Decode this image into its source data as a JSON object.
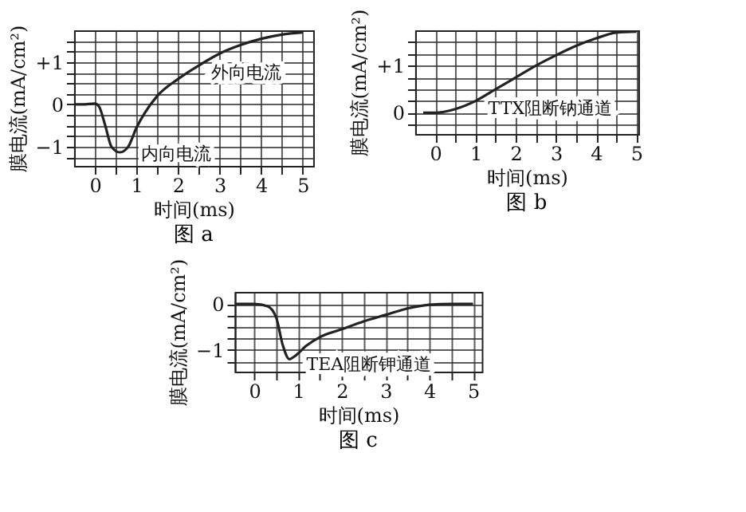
{
  "chart_data": [
    {
      "type": "line",
      "title": "图 a",
      "xlabel": "时间(ms)",
      "ylabel": "膜电流(mA/cm²)",
      "grid": true,
      "marker": "none",
      "line_style": "solid",
      "xlim": [
        -0.5,
        5.25
      ],
      "ylim": [
        -1.45,
        1.75
      ],
      "xticks": [
        0,
        {
          "value": 0.5,
          "label": null
        },
        1,
        {
          "value": 1.5,
          "label": null
        },
        2,
        {
          "value": 2.5,
          "label": null
        },
        3,
        {
          "value": 3.5,
          "label": null
        },
        4,
        {
          "value": 4.5,
          "label": null
        },
        5
      ],
      "yticks": [
        {
          "value": -1.25,
          "label": null
        },
        {
          "value": -1,
          "label": "−1"
        },
        {
          "value": -0.75,
          "label": null
        },
        {
          "value": -0.5,
          "label": null
        },
        {
          "value": -0.25,
          "label": null
        },
        0,
        {
          "value": 0.25,
          "label": null
        },
        {
          "value": 0.5,
          "label": null
        },
        {
          "value": 0.75,
          "label": null
        },
        {
          "value": 1,
          "label": "+1"
        },
        {
          "value": 1.25,
          "label": null
        },
        {
          "value": 1.5,
          "label": null
        }
      ],
      "x": [
        -0.5,
        -0.3,
        0,
        0.1,
        0.25,
        0.4,
        0.6,
        0.8,
        1.0,
        1.2,
        1.5,
        2,
        2.5,
        3,
        3.5,
        4,
        4.5,
        5
      ],
      "series": [
        {
          "color": "#222222",
          "values": [
            0,
            0,
            0.02,
            -0.05,
            -0.5,
            -1.0,
            -1.13,
            -1.0,
            -0.55,
            -0.2,
            0.2,
            0.6,
            0.92,
            1.2,
            1.4,
            1.55,
            1.65,
            1.7
          ]
        }
      ],
      "annotations": [
        {
          "text": "外向电流",
          "x": 2.5,
          "y": 0.92
        },
        {
          "text": "内向电流",
          "x": 0.8,
          "y": -1.0
        }
      ]
    },
    {
      "type": "line",
      "title": "图 b",
      "xlabel": "时间(ms)",
      "ylabel": "膜电流(mA/cm²)",
      "grid": true,
      "marker": "none",
      "line_style": "solid",
      "xlim": [
        -0.5,
        5.05
      ],
      "ylim": [
        -0.45,
        1.75
      ],
      "xticks": [
        0,
        {
          "value": 0.5,
          "label": null
        },
        1,
        {
          "value": 1.5,
          "label": null
        },
        2,
        {
          "value": 2.5,
          "label": null
        },
        3,
        {
          "value": 3.5,
          "label": null
        },
        4,
        {
          "value": 4.5,
          "label": null
        },
        5
      ],
      "yticks": [
        {
          "value": -0.25,
          "label": null
        },
        0,
        {
          "value": 0.25,
          "label": null
        },
        {
          "value": 0.5,
          "label": null
        },
        {
          "value": 0.75,
          "label": null
        },
        {
          "value": 1,
          "label": "+1"
        },
        {
          "value": 1.25,
          "label": null
        },
        {
          "value": 1.5,
          "label": null
        }
      ],
      "x": [
        -0.3,
        0,
        0.5,
        1,
        1.5,
        2,
        2.5,
        3,
        3.5,
        4,
        4.5,
        5
      ],
      "series": [
        {
          "color": "#222222",
          "values": [
            0,
            0,
            0.08,
            0.25,
            0.5,
            0.75,
            1.0,
            1.22,
            1.42,
            1.58,
            1.7,
            1.72
          ]
        }
      ],
      "annotations": [
        {
          "text": "TTX阻断钠通道",
          "x": 1,
          "y": 0.25
        }
      ]
    },
    {
      "type": "line",
      "title": "图 c",
      "xlabel": "时间(ms)",
      "ylabel": "膜电流(mA/cm²)",
      "grid": true,
      "marker": "none",
      "line_style": "solid",
      "xlim": [
        -0.45,
        5.2
      ],
      "ylim": [
        -1.47,
        0.26
      ],
      "xticks": [
        0,
        {
          "value": 0.5,
          "label": null
        },
        1,
        {
          "value": 1.5,
          "label": null
        },
        2,
        {
          "value": 2.5,
          "label": null
        },
        3,
        {
          "value": 3.5,
          "label": null
        },
        4,
        {
          "value": 4.5,
          "label": null
        },
        5
      ],
      "yticks": [
        {
          "value": -1.25,
          "label": null
        },
        {
          "value": -1,
          "label": "−1"
        },
        {
          "value": -0.75,
          "label": null
        },
        {
          "value": -0.5,
          "label": null
        },
        {
          "value": -0.25,
          "label": null
        },
        0
      ],
      "x": [
        -0.45,
        0,
        0.3,
        0.5,
        0.65,
        0.8,
        0.9,
        1.2,
        1.5,
        2,
        2.5,
        3,
        3.5,
        4,
        4.5,
        5
      ],
      "series": [
        {
          "color": "#222222",
          "values": [
            0,
            0,
            -0.05,
            -0.3,
            -0.9,
            -1.2,
            -1.15,
            -0.9,
            -0.72,
            -0.55,
            -0.38,
            -0.24,
            -0.1,
            -0.02,
            0,
            0
          ]
        }
      ],
      "annotations": [
        {
          "text": "TEA阻断钾通道",
          "x": 0.9,
          "y": -1.15
        }
      ]
    }
  ]
}
